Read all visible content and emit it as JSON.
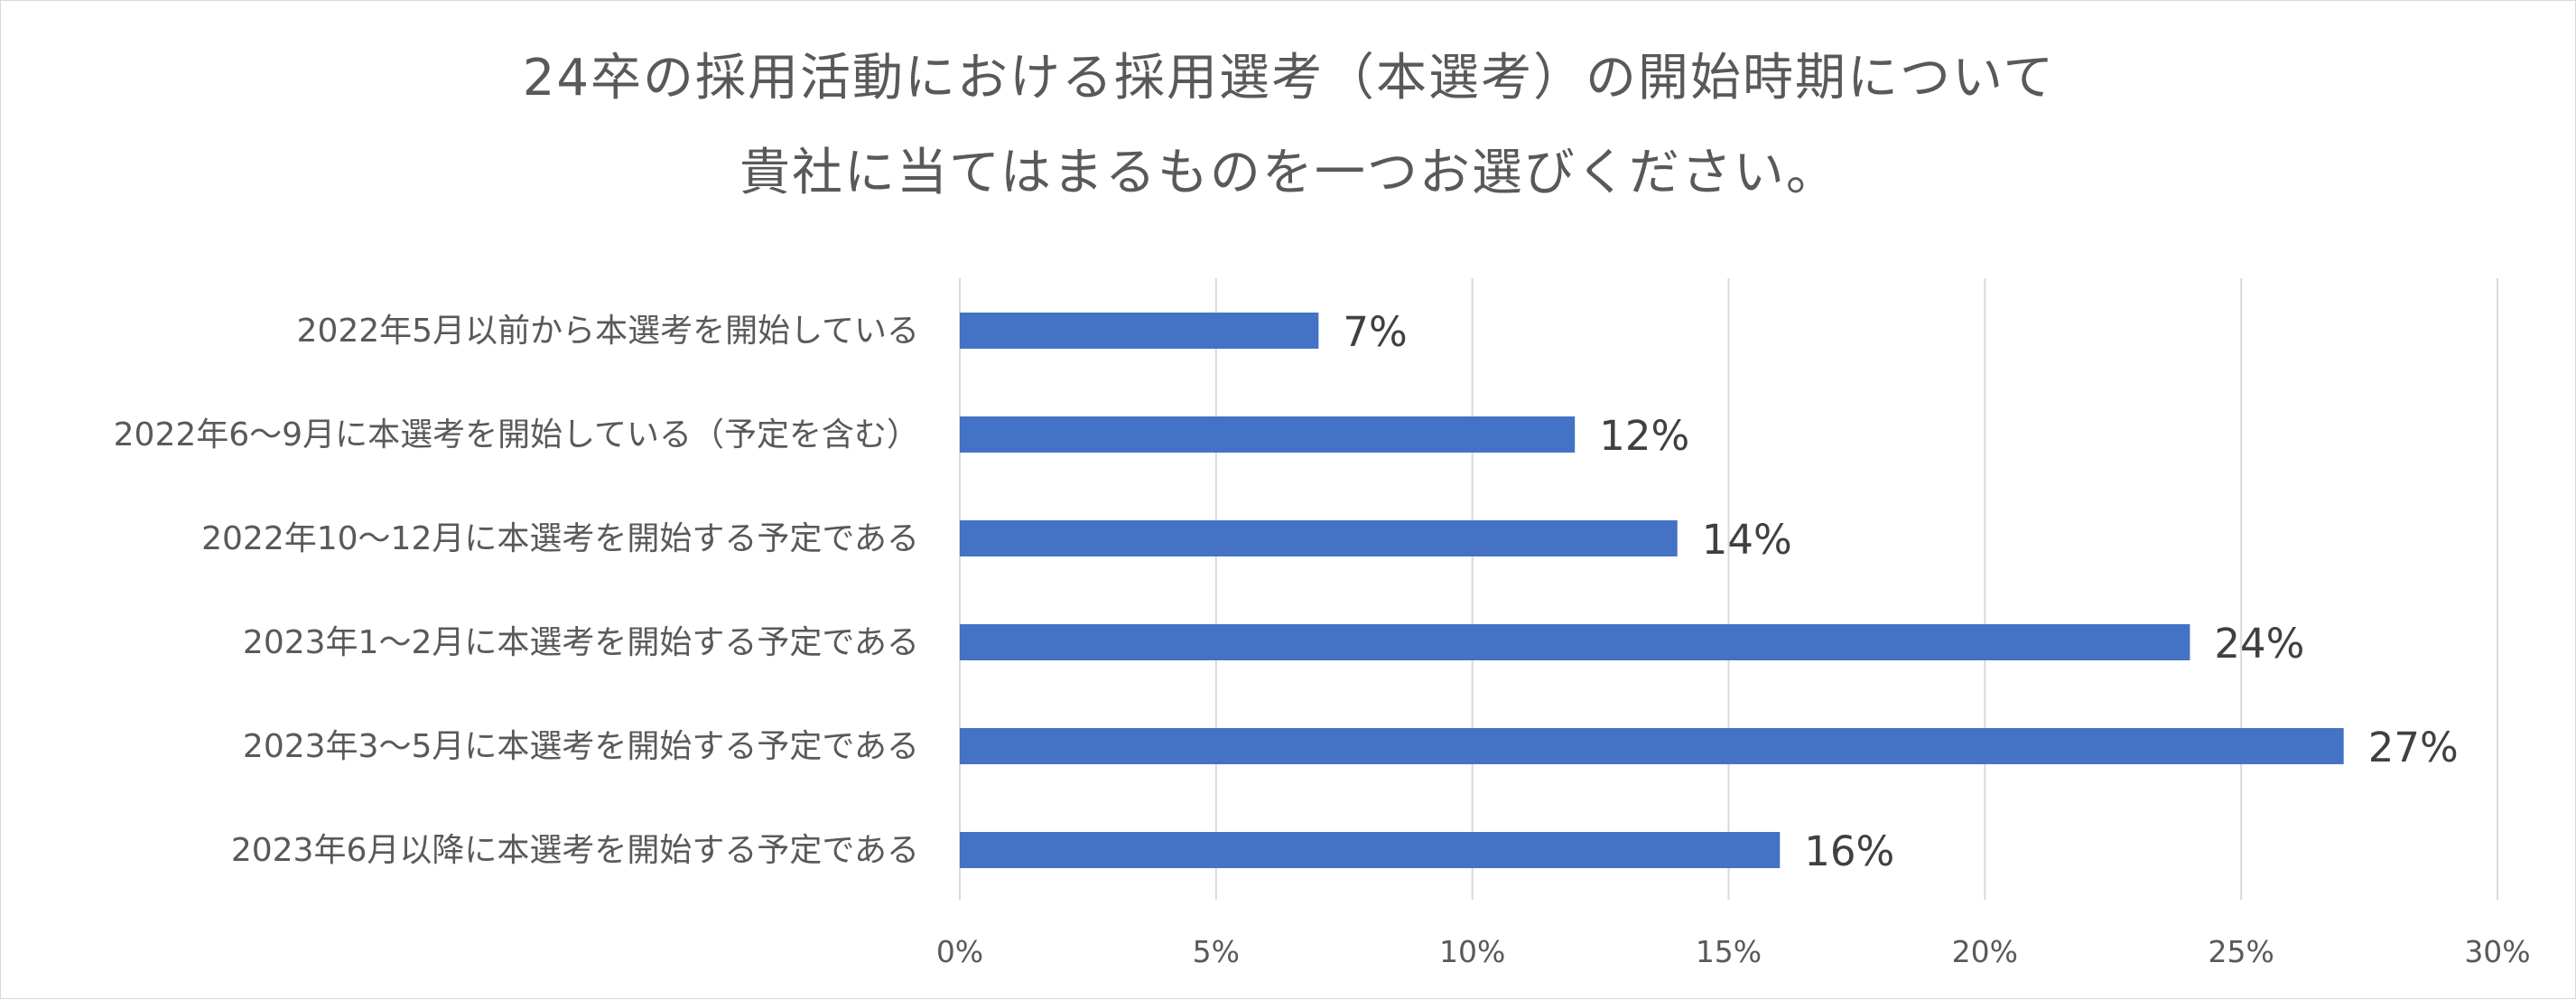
{
  "chart_data": {
    "type": "bar",
    "orientation": "horizontal",
    "title": [
      "24卒の採用活動における採用選考（本選考）の開始時期について",
      "貴社に当てはまるものを一つお選びください。"
    ],
    "categories": [
      "2022年5月以前から本選考を開始している",
      "2022年6〜9月に本選考を開始している（予定を含む）",
      "2022年10〜12月に本選考を開始する予定である",
      "2023年1〜2月に本選考を開始する予定である",
      "2023年3〜5月に本選考を開始する予定である",
      "2023年6月以降に本選考を開始する予定である"
    ],
    "values": [
      7,
      12,
      14,
      24,
      27,
      16
    ],
    "data_labels": [
      "7%",
      "12%",
      "14%",
      "24%",
      "27%",
      "16%"
    ],
    "xlim": [
      0,
      30
    ],
    "xticks": [
      0,
      5,
      10,
      15,
      20,
      25,
      30
    ],
    "xtick_labels": [
      "0%",
      "5%",
      "10%",
      "15%",
      "20%",
      "25%",
      "30%"
    ],
    "grid": "vertical",
    "legend": "none",
    "colors": {
      "bar": "#4472c4",
      "grid": "#d9d9d9",
      "text": "#595959",
      "data_label": "#404040"
    }
  }
}
